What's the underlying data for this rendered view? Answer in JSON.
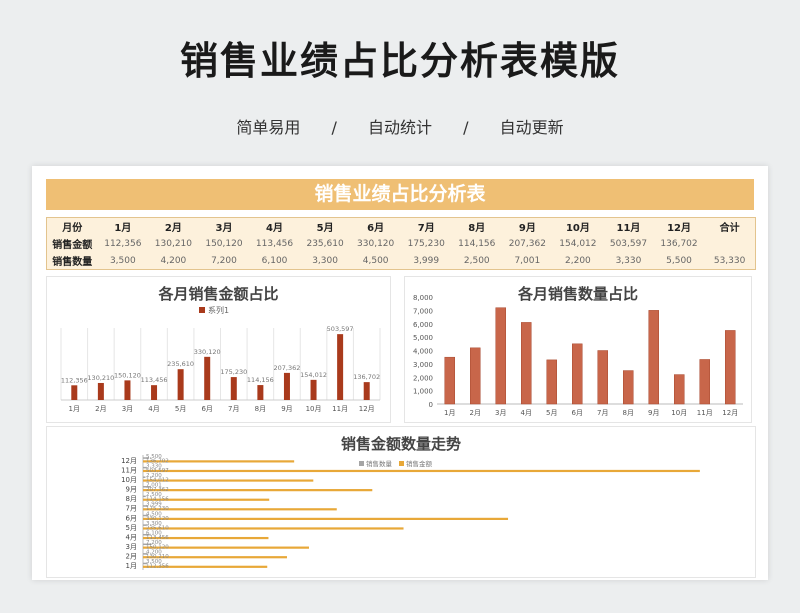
{
  "header": {
    "title": "销售业绩占比分析表模版",
    "subtitle_items": [
      "简单易用",
      "/",
      "自动统计",
      "/",
      "自动更新"
    ]
  },
  "sheet": {
    "banner": "销售业绩占比分析表",
    "table": {
      "headers": [
        "月份",
        "1月",
        "2月",
        "3月",
        "4月",
        "5月",
        "6月",
        "7月",
        "8月",
        "9月",
        "10月",
        "11月",
        "12月",
        "合计"
      ],
      "rows": [
        {
          "label": "销售金额",
          "values": [
            "112,356",
            "130,210",
            "150,120",
            "113,456",
            "235,610",
            "330,120",
            "175,230",
            "114,156",
            "207,362",
            "154,012",
            "503,597",
            "136,702",
            ""
          ]
        },
        {
          "label": "销售数量",
          "values": [
            "3,500",
            "4,200",
            "7,200",
            "6,100",
            "3,300",
            "4,500",
            "3,999",
            "2,500",
            "7,001",
            "2,200",
            "3,330",
            "5,500",
            "53,330"
          ]
        }
      ]
    }
  },
  "colors": {
    "banner": "#efbf74",
    "amount_bar": "#a93a1c",
    "quantity_bar": "#c8664a",
    "line_amount": "#e8a838",
    "line_quantity": "#a5a5a5"
  },
  "chart_data": [
    {
      "type": "bar",
      "title": "各月销售金额占比",
      "legend": "系列1",
      "legend_position": "top",
      "categories": [
        "1月",
        "2月",
        "3月",
        "4月",
        "5月",
        "6月",
        "7月",
        "8月",
        "9月",
        "10月",
        "11月",
        "12月"
      ],
      "values": [
        112356,
        130210,
        150120,
        113456,
        235610,
        330120,
        175230,
        114156,
        207362,
        154012,
        503597,
        136702
      ],
      "data_labels": [
        "112,356",
        "130,210",
        "150,120",
        "113,456",
        "235,610",
        "330,120",
        "175,230",
        "114,156",
        "207,362",
        "154,012",
        "503,597",
        "136,702"
      ],
      "grid": "vertical"
    },
    {
      "type": "bar",
      "title": "各月销售数量占比",
      "categories": [
        "1月",
        "2月",
        "3月",
        "4月",
        "5月",
        "6月",
        "7月",
        "8月",
        "9月",
        "10月",
        "11月",
        "12月"
      ],
      "values": [
        3500,
        4200,
        7200,
        6100,
        3300,
        4500,
        3999,
        2500,
        7001,
        2200,
        3330,
        5500
      ],
      "ylim": [
        0,
        8000
      ],
      "yticks": [
        "0",
        "1,000",
        "2,000",
        "3,000",
        "4,000",
        "5,000",
        "6,000",
        "7,000",
        "8,000"
      ],
      "grid": false
    },
    {
      "type": "bar",
      "orientation": "horizontal",
      "title": "销售金额数量走势",
      "legend_position": "top-right",
      "categories": [
        "1月",
        "2月",
        "3月",
        "4月",
        "5月",
        "6月",
        "7月",
        "8月",
        "9月",
        "10月",
        "11月",
        "12月"
      ],
      "series": [
        {
          "name": "销售数量",
          "values": [
            3500,
            4200,
            7200,
            6100,
            3300,
            4500,
            3999,
            2500,
            7001,
            2200,
            3330,
            5500
          ]
        },
        {
          "name": "销售金额",
          "values": [
            112356,
            130210,
            150120,
            113456,
            235610,
            330120,
            175230,
            114156,
            207362,
            154012,
            503597,
            136702
          ]
        }
      ]
    }
  ]
}
